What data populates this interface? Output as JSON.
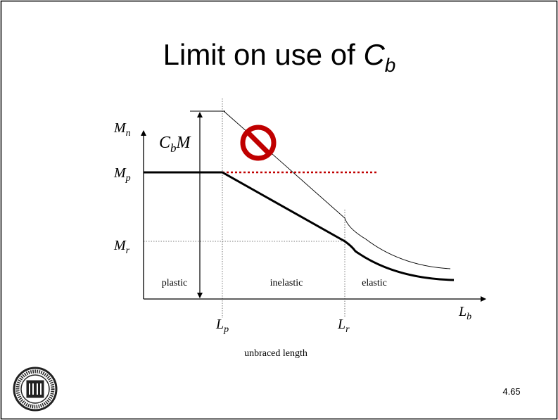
{
  "header": {
    "title": {
      "text": "Limit on use of ",
      "symbol": "C",
      "sub": "b"
    }
  },
  "labels": {
    "mn": {
      "main": "M",
      "sub": "n"
    },
    "cbm": {
      "main": "C",
      "sub": "b",
      "tail": "M"
    },
    "mp": {
      "main": "M",
      "sub": "p"
    },
    "mr": {
      "main": "M",
      "sub": "r"
    },
    "lp": {
      "main": "L",
      "sub": "p"
    },
    "lr": {
      "main": "L",
      "sub": "r"
    },
    "lb": {
      "main": "L",
      "sub": "b"
    }
  },
  "zones": [
    "plastic",
    "inelastic",
    "elastic"
  ],
  "xlabel": "unbraced length",
  "page_number": "4.65"
}
